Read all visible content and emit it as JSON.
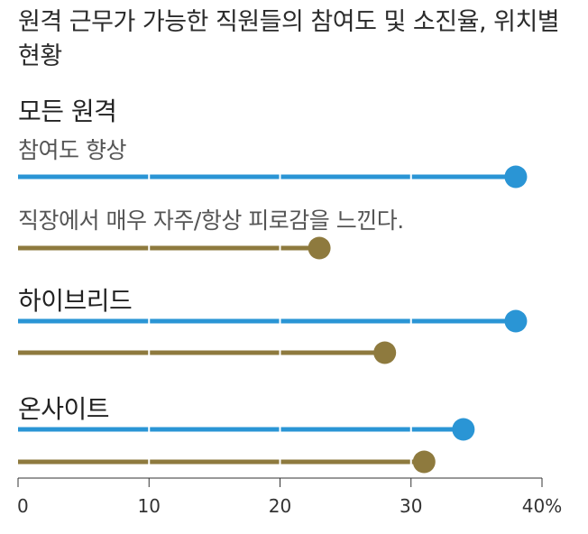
{
  "title": "원격 근무가 가능한 직원들의 참여도 및 소진율, 위치별 현황",
  "colors": {
    "engagement": "#2a95d5",
    "burnout": "#8e7a3e",
    "divider": "#ffffff",
    "axis": "#333333"
  },
  "chart_data": {
    "type": "dot-bar",
    "title": "원격 근무가 가능한 직원들의 참여도 및 소진율, 위치별 현황",
    "series": [
      {
        "name": "참여도 향상",
        "values": [
          38,
          38,
          34
        ]
      },
      {
        "name": "직장에서 매우 자주/항상 피로감을 느낀다.",
        "values": [
          23,
          28,
          31
        ]
      }
    ],
    "categories": [
      "모든 원격",
      "하이브리드",
      "온사이트"
    ],
    "xticks": [
      "0",
      "10",
      "20",
      "30",
      "40%"
    ],
    "xlim": [
      0,
      40
    ],
    "grid": false
  }
}
